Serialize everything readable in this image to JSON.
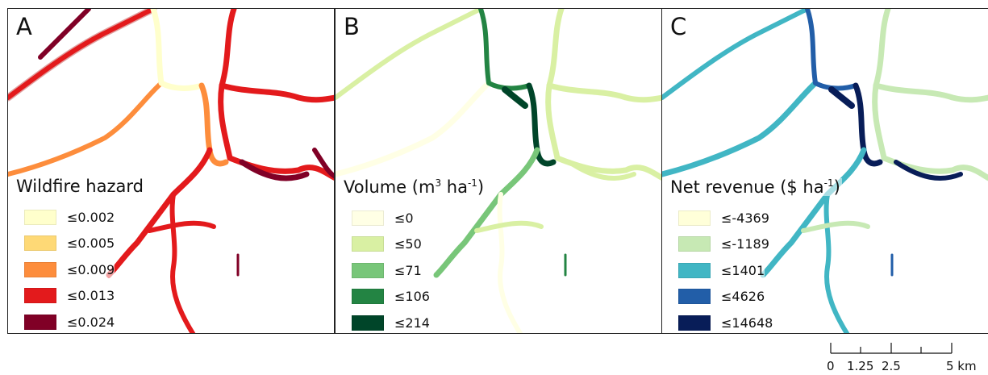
{
  "panels": [
    {
      "letter": "A",
      "legend": {
        "title": "Wildfire hazard",
        "classes": [
          {
            "label": "≤0.002",
            "color": "#ffffcc"
          },
          {
            "label": "≤0.005",
            "color": "#fed976"
          },
          {
            "label": "≤0.009",
            "color": "#fd8d3c"
          },
          {
            "label": "≤0.013",
            "color": "#e31a1c"
          },
          {
            "label": "≤0.024",
            "color": "#800026"
          }
        ]
      }
    },
    {
      "letter": "B",
      "legend": {
        "title_main": "Volume (m",
        "title_sup1": "3",
        "title_mid": " ha",
        "title_sup2": "-1",
        "title_end": ")",
        "classes": [
          {
            "label": "≤0",
            "color": "#ffffe5"
          },
          {
            "label": "≤50",
            "color": "#d9f0a3"
          },
          {
            "label": "≤71",
            "color": "#78c679"
          },
          {
            "label": "≤106",
            "color": "#238443"
          },
          {
            "label": "≤214",
            "color": "#004529"
          }
        ]
      }
    },
    {
      "letter": "C",
      "legend": {
        "title_main": "Net revenue ($ ha",
        "title_sup": "-1",
        "title_end": ")",
        "classes": [
          {
            "label": "≤-4369",
            "color": "#ffffd9"
          },
          {
            "label": "≤-1189",
            "color": "#c7e9b4"
          },
          {
            "label": "≤1401",
            "color": "#41b6c4"
          },
          {
            "label": "≤4626",
            "color": "#225ea8"
          },
          {
            "label": "≤14648",
            "color": "#081d58"
          }
        ]
      }
    }
  ],
  "scale_bar": {
    "labels": [
      "0",
      "1.25",
      "2.5",
      "5 km"
    ]
  }
}
